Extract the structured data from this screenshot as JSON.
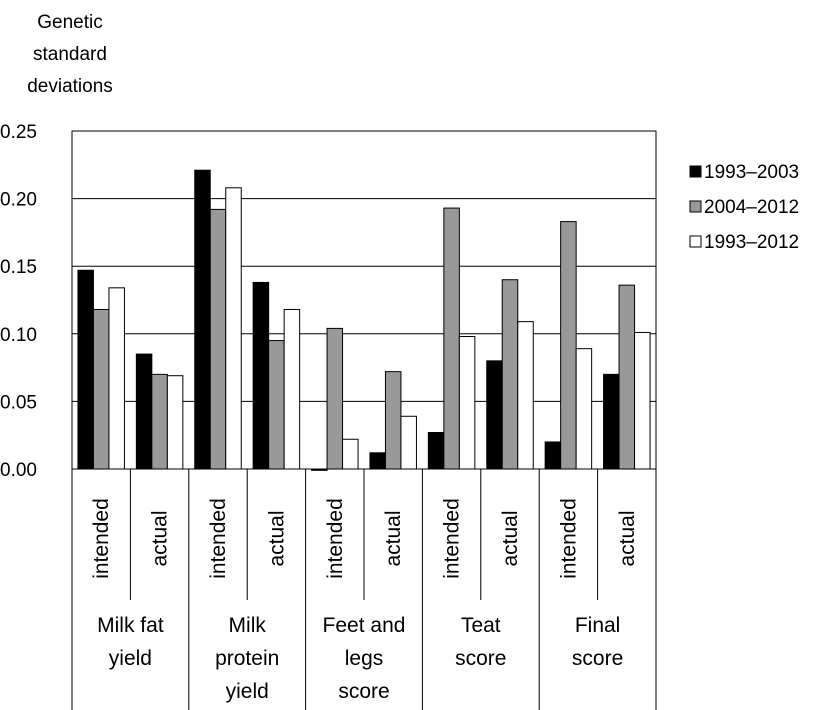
{
  "chart_data": {
    "type": "bar",
    "ylabel_lines": [
      "Genetic",
      "standard",
      "deviations"
    ],
    "ylim": [
      0,
      0.25
    ],
    "yticks": [
      "0.00",
      "0.05",
      "0.10",
      "0.15",
      "0.20",
      "0.25"
    ],
    "grid": true,
    "legend_position": "right",
    "groups": [
      {
        "label_lines": [
          "Milk fat",
          "yield"
        ]
      },
      {
        "label_lines": [
          "Milk",
          "protein",
          "yield"
        ]
      },
      {
        "label_lines": [
          "Feet and",
          "legs",
          "score"
        ]
      },
      {
        "label_lines": [
          "Teat",
          "score"
        ]
      },
      {
        "label_lines": [
          "Final",
          "score"
        ]
      }
    ],
    "subcategories": [
      "intended",
      "actual",
      "intended",
      "actual",
      "intended",
      "actual",
      "intended",
      "actual",
      "intended",
      "actual"
    ],
    "series": [
      {
        "name": "1993–2003",
        "color": "#000000",
        "values": [
          0.147,
          0.085,
          0.221,
          0.138,
          -0.001,
          0.012,
          0.027,
          0.08,
          0.02,
          0.07
        ]
      },
      {
        "name": "2004–2012",
        "color": "#999999",
        "values": [
          0.118,
          0.07,
          0.192,
          0.095,
          0.104,
          0.072,
          0.193,
          0.14,
          0.183,
          0.136
        ]
      },
      {
        "name": "1993–2012",
        "color": "#ffffff",
        "values": [
          0.134,
          0.069,
          0.208,
          0.118,
          0.022,
          0.039,
          0.098,
          0.109,
          0.089,
          0.101
        ]
      }
    ]
  }
}
